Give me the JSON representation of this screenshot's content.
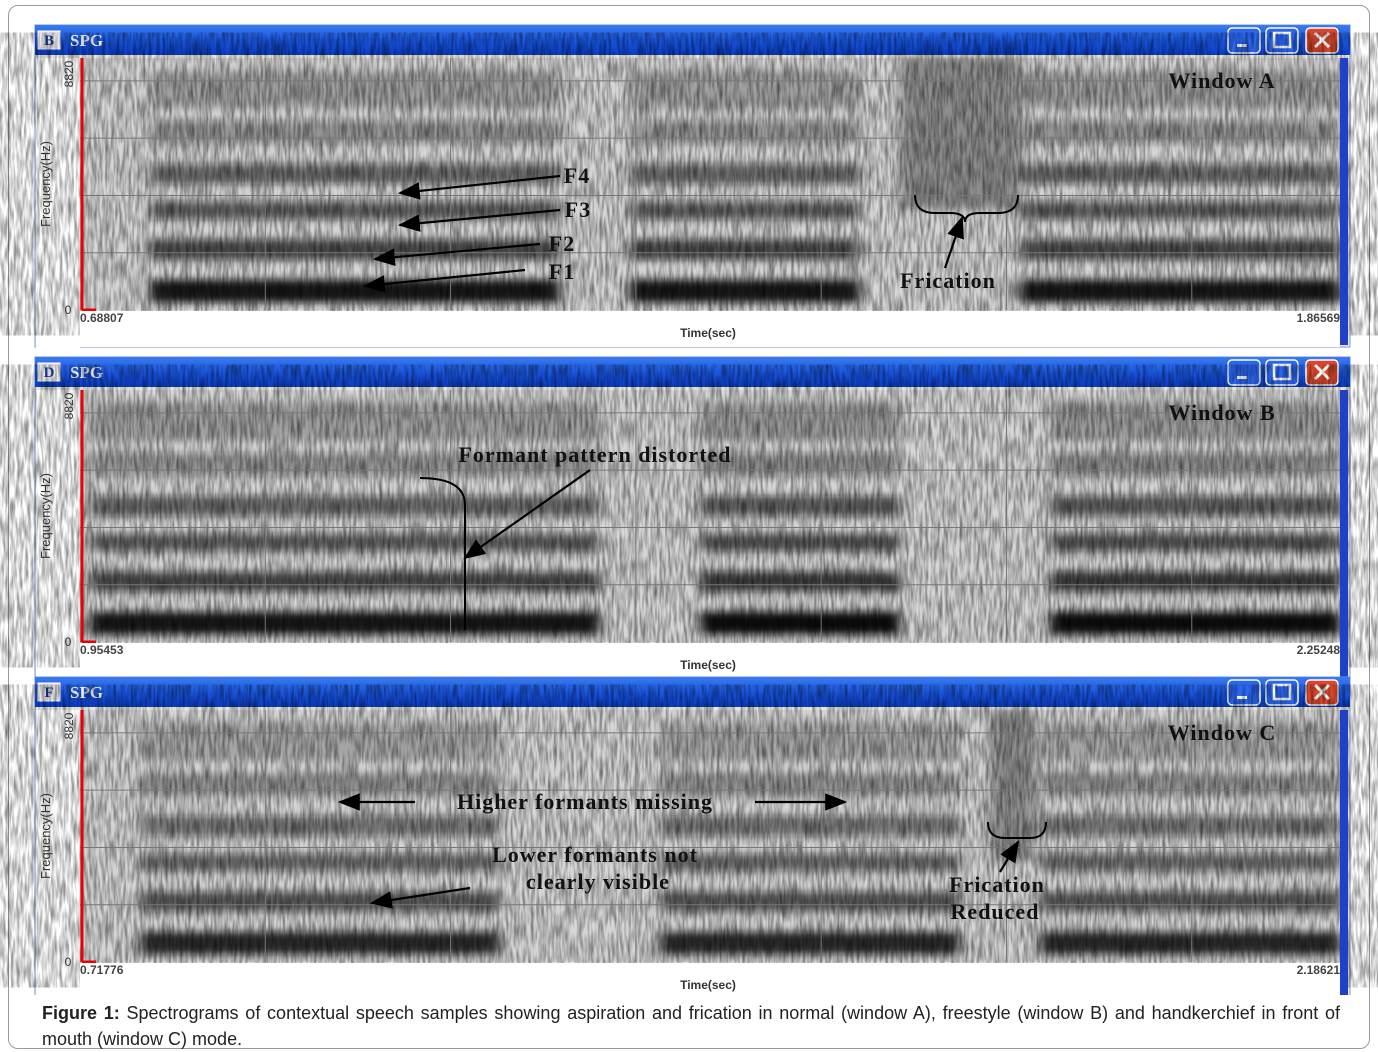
{
  "windows": [
    {
      "badge": "B",
      "title": "SPG",
      "y_max_label": "8820",
      "y_min_label": "0",
      "y_axis_label": "Frequency(Hz)",
      "x_start": "0.68807",
      "x_end": "1.86569",
      "x_axis_label": "Time(sec)",
      "name": "Window A",
      "annotations": [
        "F4",
        "F3",
        "F2",
        "F1",
        "Frication"
      ]
    },
    {
      "badge": "D",
      "title": "SPG",
      "y_max_label": "8820",
      "y_min_label": "0",
      "y_axis_label": "Frequency(Hz)",
      "x_start": "0.95453",
      "x_end": "2.25248",
      "x_axis_label": "Time(sec)",
      "name": "Window B",
      "annotations": [
        "Formant pattern distorted"
      ]
    },
    {
      "badge": "F",
      "title": "SPG",
      "y_max_label": "8820",
      "y_min_label": "0",
      "y_axis_label": "Frequency(Hz)",
      "x_start": "0.71776",
      "x_end": "2.18621",
      "x_axis_label": "Time(sec)",
      "name": "Window C",
      "annotations": [
        "Higher formants missing",
        "Lower formants not",
        "clearly visible",
        "Frication",
        "Reduced"
      ]
    }
  ],
  "caption": {
    "label": "Figure 1:",
    "text": "Spectrograms of contextual speech samples showing aspiration and frication in normal (window A), freestyle (window B) and handkerchief in front of mouth (window C) mode."
  }
}
